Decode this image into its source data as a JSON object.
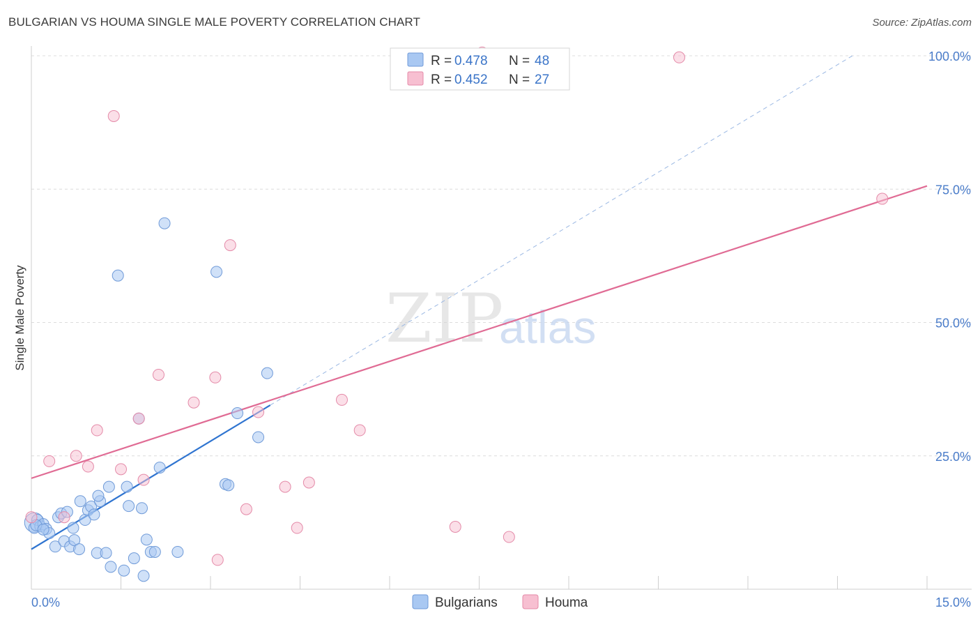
{
  "title": "BULGARIAN VS HOUMA SINGLE MALE POVERTY CORRELATION CHART",
  "source": "Source: ZipAtlas.com",
  "watermark": {
    "zip": "ZIP",
    "atlas": "atlas"
  },
  "legend": {
    "rows": [
      {
        "r_label": "R =",
        "r_value": "0.478",
        "n_label": "N =",
        "n_value": "48",
        "color": "#a9c8f2",
        "stroke": "#6f9ad8"
      },
      {
        "r_label": "R =",
        "r_value": "0.452",
        "n_label": "N =",
        "n_value": "27",
        "color": "#f7bfd1",
        "stroke": "#e48aa8"
      }
    ]
  },
  "chart_data": {
    "type": "scatter",
    "xlabel": "",
    "ylabel": "Single Male Poverty",
    "xlim": [
      0,
      15
    ],
    "ylim": [
      0,
      102
    ],
    "x_tick_labels": [
      {
        "value": 0,
        "label": "0.0%"
      },
      {
        "value": 15,
        "label": "15.0%"
      }
    ],
    "y_tick_labels": [
      {
        "value": 25,
        "label": "25.0%"
      },
      {
        "value": 50,
        "label": "50.0%"
      },
      {
        "value": 75,
        "label": "75.0%"
      },
      {
        "value": 100,
        "label": "100.0%"
      }
    ],
    "series": [
      {
        "name": "Bulgarians",
        "color": "#a9c8f2",
        "stroke": "#6f9ad8",
        "line_color": "#2f74d0",
        "trend": {
          "x0": 0,
          "y0": 7.5,
          "x1": 4.0,
          "y1": 34.5,
          "dash_to_x": 13.75,
          "dash_to_y": 100
        },
        "points": [
          [
            0.05,
            11.5
          ],
          [
            0.1,
            13
          ],
          [
            0.15,
            11.8
          ],
          [
            0.2,
            12.2
          ],
          [
            0.25,
            11.3
          ],
          [
            0.3,
            10.5
          ],
          [
            0.4,
            8
          ],
          [
            0.45,
            13.5
          ],
          [
            0.5,
            14.2
          ],
          [
            0.55,
            9
          ],
          [
            0.6,
            14.5
          ],
          [
            0.65,
            8
          ],
          [
            0.7,
            11.5
          ],
          [
            0.72,
            9.2
          ],
          [
            0.8,
            7.5
          ],
          [
            0.82,
            16.5
          ],
          [
            0.9,
            13
          ],
          [
            0.95,
            14.8
          ],
          [
            1.0,
            15.5
          ],
          [
            1.05,
            14
          ],
          [
            1.1,
            6.8
          ],
          [
            1.15,
            16.5
          ],
          [
            1.12,
            17.5
          ],
          [
            1.25,
            6.8
          ],
          [
            1.3,
            19.2
          ],
          [
            1.33,
            4.2
          ],
          [
            1.45,
            58.8
          ],
          [
            1.55,
            3.5
          ],
          [
            1.6,
            19.2
          ],
          [
            1.63,
            15.6
          ],
          [
            1.72,
            5.8
          ],
          [
            1.8,
            32
          ],
          [
            1.85,
            15.2
          ],
          [
            1.88,
            2.5
          ],
          [
            1.93,
            9.3
          ],
          [
            2.0,
            7
          ],
          [
            2.07,
            7
          ],
          [
            2.15,
            22.8
          ],
          [
            2.23,
            68.6
          ],
          [
            2.45,
            7
          ],
          [
            3.1,
            59.5
          ],
          [
            3.25,
            19.7
          ],
          [
            3.3,
            19.5
          ],
          [
            3.45,
            33
          ],
          [
            3.8,
            28.5
          ],
          [
            3.95,
            40.5
          ],
          [
            0.08,
            12
          ],
          [
            0.2,
            11.2
          ]
        ]
      },
      {
        "name": "Houma",
        "color": "#f7bfd1",
        "stroke": "#e48aa8",
        "line_color": "#e06b94",
        "trend": {
          "x0": 0,
          "y0": 20.8,
          "x1": 15,
          "y1": 75.6
        },
        "points": [
          [
            0.0,
            13.5
          ],
          [
            0.3,
            24
          ],
          [
            0.55,
            13.5
          ],
          [
            0.75,
            25
          ],
          [
            0.95,
            23
          ],
          [
            1.1,
            29.8
          ],
          [
            1.38,
            88.7
          ],
          [
            1.5,
            22.5
          ],
          [
            1.8,
            32
          ],
          [
            1.88,
            20.5
          ],
          [
            2.13,
            40.2
          ],
          [
            2.72,
            35
          ],
          [
            3.08,
            39.7
          ],
          [
            3.12,
            5.5
          ],
          [
            3.33,
            64.5
          ],
          [
            3.6,
            15
          ],
          [
            3.8,
            33.2
          ],
          [
            4.25,
            19.2
          ],
          [
            4.45,
            11.5
          ],
          [
            4.65,
            20
          ],
          [
            5.2,
            35.5
          ],
          [
            5.5,
            29.8
          ],
          [
            7.1,
            11.7
          ],
          [
            8.0,
            9.8
          ],
          [
            10.85,
            99.7
          ],
          [
            14.25,
            73.2
          ],
          [
            7.55,
            100.6
          ]
        ]
      }
    ]
  },
  "bottom_legend": [
    "Bulgarians",
    "Houma"
  ]
}
